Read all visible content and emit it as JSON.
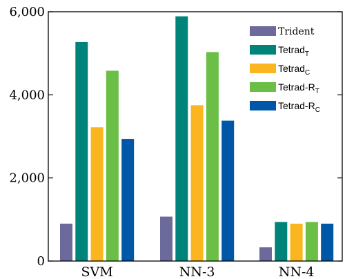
{
  "chart_data": {
    "type": "bar",
    "categories": [
      "SVM",
      "NN-3",
      "NN-4"
    ],
    "ylim": [
      0,
      6000
    ],
    "yticks": [
      0,
      2000,
      4000,
      6000
    ],
    "ytick_labels": [
      "0",
      "2,000",
      "4,000",
      "6,000"
    ],
    "grid": false,
    "legend_position": "top-right",
    "series": [
      {
        "name": "Trident",
        "name_base": "Trident",
        "name_sub": "",
        "color": "#6b6a9a",
        "values": [
          900,
          1070,
          330
        ]
      },
      {
        "name": "TetradT",
        "name_base": "Tetrad",
        "name_sub": "T",
        "color": "#00847a",
        "values": [
          5270,
          5890,
          940
        ]
      },
      {
        "name": "TetradC",
        "name_base": "Tetrad",
        "name_sub": "C",
        "color": "#fbb51f",
        "values": [
          3220,
          3750,
          900
        ]
      },
      {
        "name": "Tetrad-RT",
        "name_base": "Tetrad-R",
        "name_sub": "T",
        "color": "#6bbf47",
        "values": [
          4580,
          5030,
          940
        ]
      },
      {
        "name": "Tetrad-RC",
        "name_base": "Tetrad-R",
        "name_sub": "C",
        "color": "#0057a8",
        "values": [
          2940,
          3380,
          900
        ]
      }
    ]
  }
}
